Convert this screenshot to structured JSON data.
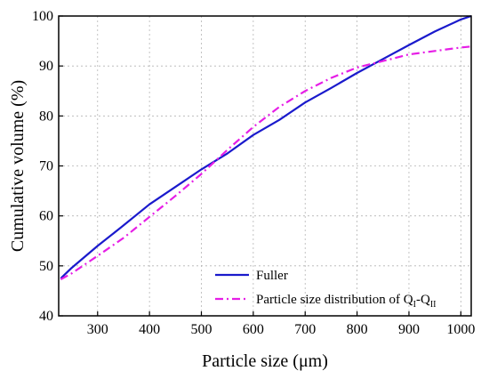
{
  "chart_data": {
    "type": "line",
    "xlabel": "Particle size (μm)",
    "ylabel": "Cumulative volume (%)",
    "xlim": [
      225,
      1020
    ],
    "ylim": [
      40,
      100
    ],
    "x_ticks": [
      300,
      400,
      500,
      600,
      700,
      800,
      900,
      1000
    ],
    "y_ticks": [
      40,
      50,
      60,
      70,
      80,
      90,
      100
    ],
    "grid": true,
    "legend_position": "bottom-right",
    "series": [
      {
        "name": "Fuller",
        "color": "#1a1acc",
        "style": "solid",
        "points": [
          [
            229,
            47.5
          ],
          [
            250,
            49.6
          ],
          [
            300,
            54.0
          ],
          [
            350,
            58.1
          ],
          [
            400,
            62.3
          ],
          [
            450,
            65.8
          ],
          [
            500,
            69.3
          ],
          [
            550,
            72.5
          ],
          [
            600,
            76.2
          ],
          [
            650,
            79.2
          ],
          [
            700,
            82.7
          ],
          [
            750,
            85.6
          ],
          [
            800,
            88.6
          ],
          [
            850,
            91.4
          ],
          [
            900,
            94.2
          ],
          [
            950,
            96.9
          ],
          [
            1000,
            99.3
          ],
          [
            1020,
            100.0
          ]
        ]
      },
      {
        "name": "Particle size distribution of Q",
        "name_sub_1": "I",
        "name_mid": "-Q",
        "name_sub_2": "II",
        "color": "#e61ee6",
        "style": "dash-dot",
        "points": [
          [
            229,
            47.3
          ],
          [
            250,
            48.5
          ],
          [
            300,
            52.0
          ],
          [
            350,
            55.6
          ],
          [
            400,
            59.8
          ],
          [
            450,
            64.0
          ],
          [
            500,
            68.4
          ],
          [
            550,
            73.2
          ],
          [
            600,
            77.8
          ],
          [
            650,
            81.8
          ],
          [
            700,
            85.0
          ],
          [
            750,
            87.6
          ],
          [
            800,
            89.7
          ],
          [
            850,
            91.0
          ],
          [
            900,
            92.3
          ],
          [
            950,
            93.0
          ],
          [
            1000,
            93.7
          ],
          [
            1020,
            93.9
          ]
        ]
      }
    ]
  }
}
